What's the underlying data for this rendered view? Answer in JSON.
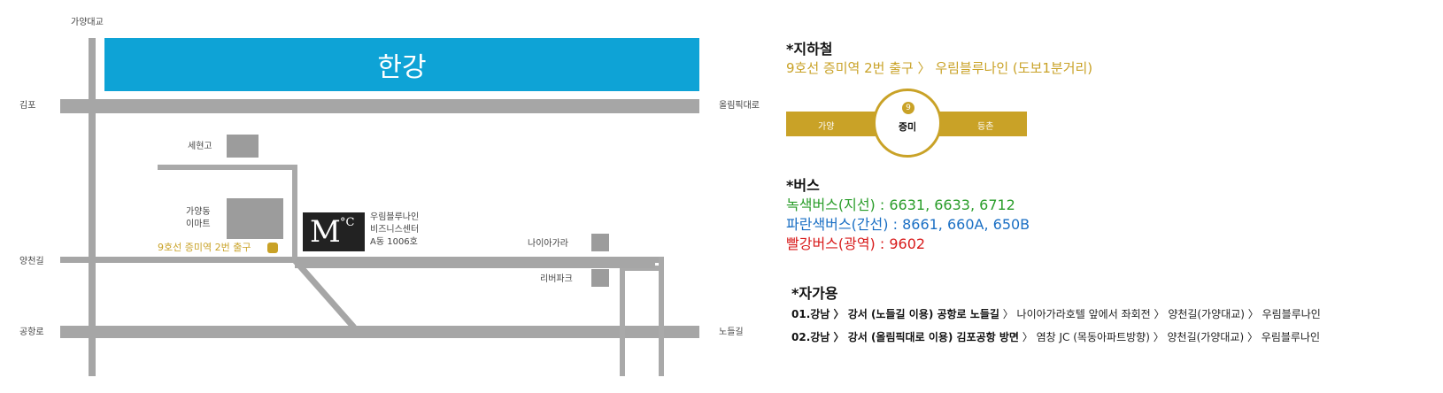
{
  "map": {
    "river": "한강",
    "roads": {
      "north_bridge": "가양대교",
      "west_top": "김포",
      "east_top": "올림픽대로",
      "west_mid": "양천길",
      "west_bottom": "공항로",
      "east_bottom": "노들길"
    },
    "places": {
      "school": "세현고",
      "emart_line1": "가양동",
      "emart_line2": "이마트",
      "exit_label": "9호선 증미역 2번 출구",
      "target_line1": "우림블루나인",
      "target_line2": "비즈니스센터",
      "target_line3": "A동 1006호",
      "niagara": "나이아가라",
      "riverpark": "리버파크"
    },
    "logo": {
      "main": "M",
      "sup": "°C"
    }
  },
  "subway": {
    "title": "*지하철",
    "route": "9호선 증미역 2번 출구 〉 우림블루나인 (도보1분거리)",
    "line_number": "9",
    "prev_station": "가양",
    "station": "증미",
    "next_station": "등촌"
  },
  "bus": {
    "title": "*버스",
    "green": "녹색버스(지선) : 6631, 6633, 6712",
    "blue": "파란색버스(간선) : 8661, 660A, 650B",
    "red": "빨강버스(광역) : 9602"
  },
  "car": {
    "title": "*자가용",
    "route1_bold": "01.강남 〉 강서 (노들길 이용) 공항로 노들길",
    "route1_rest": " 〉 나이아가라호텔 앞에서 좌회전 〉 양천길(가양대교) 〉 우림블루나인",
    "route2_bold": "02.강남 〉 강서 (올림픽대로 이용) 김포공항 방면",
    "route2_rest": " 〉 염창 JC (목동아파트방향) 〉 양천길(가양대교) 〉 우림블루나인"
  },
  "colors": {
    "river": "#0ea3d6",
    "gold": "#c9a227",
    "road": "#a6a6a6",
    "bus_green": "#2a9d2a",
    "bus_blue": "#1a6fc4",
    "bus_red": "#d81b1b"
  }
}
